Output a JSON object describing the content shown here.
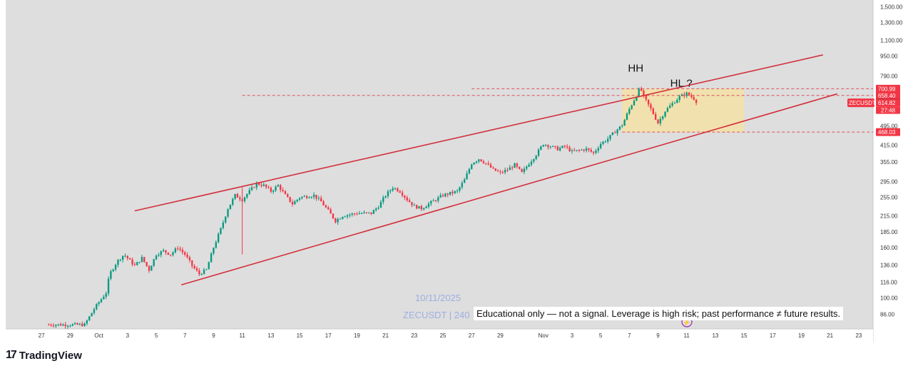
{
  "chart_data": {
    "type": "candlestick",
    "symbol": "ZECUSDT",
    "y_scale": "log",
    "ylim": [
      75,
      1600
    ],
    "y_ticks": [
      1500,
      1300,
      1100,
      950,
      790,
      700.99,
      658.4,
      615.8,
      614.82,
      495,
      468.03,
      415,
      355,
      295,
      255,
      215,
      185,
      160,
      136,
      116,
      100,
      86
    ],
    "y_tick_labels": [
      "1,500.00",
      "1,300.00",
      "1,100.00",
      "950.00",
      "790.00",
      "700.99",
      "658.40",
      "615.80",
      "614.82",
      "495.00",
      "468.03",
      "415.00",
      "355.00",
      "295.00",
      "255.00",
      "215.00",
      "185.00",
      "160.00",
      "136.00",
      "116.00",
      "100.00",
      "86.00"
    ],
    "x_ticks": [
      {
        "label": "27",
        "date": "2025-09-27"
      },
      {
        "label": "29",
        "date": "2025-09-29"
      },
      {
        "label": "Oct",
        "date": "2025-10-01"
      },
      {
        "label": "3",
        "date": "2025-10-03"
      },
      {
        "label": "5",
        "date": "2025-10-05"
      },
      {
        "label": "7",
        "date": "2025-10-07"
      },
      {
        "label": "9",
        "date": "2025-10-09"
      },
      {
        "label": "11",
        "date": "2025-10-11"
      },
      {
        "label": "13",
        "date": "2025-10-13"
      },
      {
        "label": "15",
        "date": "2025-10-15"
      },
      {
        "label": "17",
        "date": "2025-10-17"
      },
      {
        "label": "19",
        "date": "2025-10-19"
      },
      {
        "label": "21",
        "date": "2025-10-21"
      },
      {
        "label": "23",
        "date": "2025-10-23"
      },
      {
        "label": "25",
        "date": "2025-10-25"
      },
      {
        "label": "27",
        "date": "2025-10-27"
      },
      {
        "label": "29",
        "date": "2025-10-29"
      },
      {
        "label": "Nov",
        "date": "2025-11-01"
      },
      {
        "label": "3",
        "date": "2025-11-03"
      },
      {
        "label": "5",
        "date": "2025-11-05"
      },
      {
        "label": "7",
        "date": "2025-11-07"
      },
      {
        "label": "9",
        "date": "2025-11-09"
      },
      {
        "label": "11",
        "date": "2025-11-11"
      },
      {
        "label": "13",
        "date": "2025-11-13"
      },
      {
        "label": "15",
        "date": "2025-11-15"
      },
      {
        "label": "17",
        "date": "2025-11-17"
      },
      {
        "label": "19",
        "date": "2025-11-19"
      },
      {
        "label": "21",
        "date": "2025-11-21"
      },
      {
        "label": "23",
        "date": "2025-11-23"
      }
    ],
    "xlim": [
      "2025-09-24 12:00",
      "2025-11-24 00:00"
    ],
    "price_series": [
      [
        "2025-09-27 12:00",
        78
      ],
      [
        "2025-09-30 00:00",
        78
      ],
      [
        "2025-09-30 18:00",
        92
      ],
      [
        "2025-10-01 12:00",
        105
      ],
      [
        "2025-10-01 18:00",
        125
      ],
      [
        "2025-10-02 06:00",
        140
      ],
      [
        "2025-10-02 18:00",
        150
      ],
      [
        "2025-10-03 12:00",
        135
      ],
      [
        "2025-10-04 00:00",
        145
      ],
      [
        "2025-10-04 12:00",
        130
      ],
      [
        "2025-10-05 00:00",
        150
      ],
      [
        "2025-10-05 12:00",
        155
      ],
      [
        "2025-10-06 00:00",
        150
      ],
      [
        "2025-10-06 12:00",
        160
      ],
      [
        "2025-10-07 00:00",
        150
      ],
      [
        "2025-10-07 12:00",
        135
      ],
      [
        "2025-10-08 00:00",
        125
      ],
      [
        "2025-10-08 12:00",
        130
      ],
      [
        "2025-10-09 00:00",
        160
      ],
      [
        "2025-10-09 12:00",
        190
      ],
      [
        "2025-10-10 00:00",
        230
      ],
      [
        "2025-10-10 12:00",
        260
      ],
      [
        "2025-10-11 00:00",
        250
      ],
      [
        "2025-10-11 12:00",
        270
      ],
      [
        "2025-10-12 00:00",
        290
      ],
      [
        "2025-10-12 12:00",
        285
      ],
      [
        "2025-10-13 00:00",
        270
      ],
      [
        "2025-10-13 12:00",
        285
      ],
      [
        "2025-10-14 00:00",
        260
      ],
      [
        "2025-10-14 12:00",
        240
      ],
      [
        "2025-10-15 00:00",
        255
      ],
      [
        "2025-10-16 00:00",
        260
      ],
      [
        "2025-10-16 12:00",
        245
      ],
      [
        "2025-10-17 00:00",
        225
      ],
      [
        "2025-10-17 12:00",
        205
      ],
      [
        "2025-10-18 00:00",
        215
      ],
      [
        "2025-10-19 00:00",
        220
      ],
      [
        "2025-10-20 00:00",
        220
      ],
      [
        "2025-10-20 12:00",
        235
      ],
      [
        "2025-10-21 00:00",
        260
      ],
      [
        "2025-10-21 12:00",
        280
      ],
      [
        "2025-10-22 00:00",
        270
      ],
      [
        "2025-10-22 12:00",
        250
      ],
      [
        "2025-10-23 00:00",
        235
      ],
      [
        "2025-10-23 12:00",
        230
      ],
      [
        "2025-10-24 00:00",
        240
      ],
      [
        "2025-10-25 00:00",
        260
      ],
      [
        "2025-10-26 00:00",
        270
      ],
      [
        "2025-10-26 12:00",
        300
      ],
      [
        "2025-10-27 00:00",
        350
      ],
      [
        "2025-10-27 12:00",
        365
      ],
      [
        "2025-10-28 00:00",
        350
      ],
      [
        "2025-10-28 12:00",
        330
      ],
      [
        "2025-10-29 00:00",
        320
      ],
      [
        "2025-10-29 12:00",
        330
      ],
      [
        "2025-10-30 00:00",
        345
      ],
      [
        "2025-10-30 12:00",
        320
      ],
      [
        "2025-10-31 00:00",
        350
      ],
      [
        "2025-10-31 12:00",
        380
      ],
      [
        "2025-11-01 00:00",
        420
      ],
      [
        "2025-11-01 12:00",
        410
      ],
      [
        "2025-11-02 00:00",
        400
      ],
      [
        "2025-11-02 12:00",
        410
      ],
      [
        "2025-11-03 00:00",
        390
      ],
      [
        "2025-11-03 12:00",
        395
      ],
      [
        "2025-11-04 00:00",
        400
      ],
      [
        "2025-11-04 12:00",
        385
      ],
      [
        "2025-11-05 00:00",
        420
      ],
      [
        "2025-11-05 12:00",
        440
      ],
      [
        "2025-11-06 00:00",
        470
      ],
      [
        "2025-11-06 12:00",
        500
      ],
      [
        "2025-11-07 00:00",
        580
      ],
      [
        "2025-11-07 12:00",
        660
      ],
      [
        "2025-11-07 18:00",
        710
      ],
      [
        "2025-11-08 00:00",
        650
      ],
      [
        "2025-11-08 12:00",
        580
      ],
      [
        "2025-11-09 00:00",
        510
      ],
      [
        "2025-11-09 12:00",
        570
      ],
      [
        "2025-11-10 00:00",
        610
      ],
      [
        "2025-11-10 12:00",
        650
      ],
      [
        "2025-11-11 00:00",
        670
      ],
      [
        "2025-11-11 12:00",
        640
      ],
      [
        "2025-11-11 18:00",
        614.82
      ]
    ],
    "wicks": [
      {
        "date": "2025-10-11 00:00",
        "low": 150,
        "high": 280
      }
    ]
  },
  "channel": {
    "upper": [
      [
        "2025-10-03 12:00",
        225
      ],
      [
        "2025-11-20 12:00",
        960
      ]
    ],
    "lower": [
      [
        "2025-10-06 18:00",
        113
      ],
      [
        "2025-11-21 12:00",
        668
      ]
    ],
    "color": "#d32f3c"
  },
  "hlines": [
    {
      "price": 700.99,
      "from": "2025-10-27 00:00"
    },
    {
      "price": 658.4,
      "from": "2025-10-11 00:00"
    },
    {
      "price": 468.03,
      "from": "2025-11-06 12:00"
    }
  ],
  "zone": {
    "from": "2025-11-06 12:00",
    "to": "2025-11-15 00:00",
    "top": 700.99,
    "bottom": 468.03,
    "color": "#f5e2a6"
  },
  "price_labels": [
    {
      "price": 700.99,
      "text": "700.99",
      "style": "red"
    },
    {
      "price": 658.4,
      "text": "658.40",
      "style": "red"
    },
    {
      "price": 615.8,
      "text": "615.80",
      "style": "dark"
    },
    {
      "price": 614.82,
      "text": "614.82",
      "style": "red"
    },
    {
      "price": 468.03,
      "text": "468.03",
      "style": "red"
    }
  ],
  "countdown": "27:48",
  "symbol_badge": "ZECUSDT",
  "annotations": {
    "hh": "HH",
    "hl": "HL ?"
  },
  "watermark": {
    "date": "10/11/2025",
    "symbol": "ZECUSDT | 240"
  },
  "disclaimer": "Educational only — not a signal. Leverage is high risk; past performance ≠ future results.",
  "logo": "TradingView",
  "colors": {
    "up": "#089981",
    "down": "#f23645",
    "background": "#dedede",
    "channel": "#d32f3c"
  }
}
